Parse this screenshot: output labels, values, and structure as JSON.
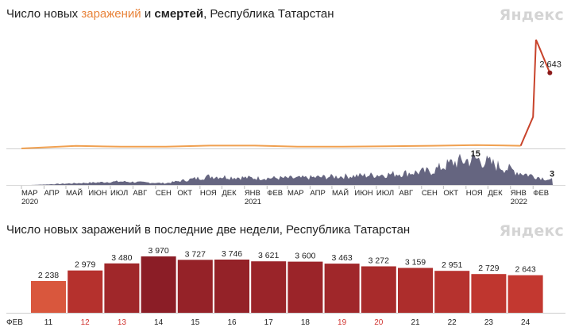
{
  "brand": "Яндекс",
  "chart1": {
    "title_part1": "Число новых ",
    "title_infections": "заражений",
    "title_part2": " и ",
    "title_deaths": "смертей",
    "title_part3": ", Республика Татарстан",
    "infections_last_label": "2 643",
    "deaths_last_label": "3",
    "deaths_peak_label": "15",
    "month_labels": [
      "МАР",
      "АПР",
      "МАЙ",
      "ИЮН",
      "ИЮЛ",
      "АВГ",
      "СЕН",
      "ОКТ",
      "НОЯ",
      "ДЕК",
      "ЯНВ",
      "ФЕВ",
      "МАР",
      "АПР",
      "МАЙ",
      "ИЮН",
      "ИЮЛ",
      "АВГ",
      "СЕН",
      "ОКТ",
      "НОЯ",
      "ДЕК",
      "ЯНВ",
      "ФЕВ"
    ],
    "year_labels": [
      "2020",
      "2021",
      "2022"
    ],
    "colors": {
      "infections": "#f0a050",
      "deaths": "#4a4a6a",
      "deaths_marker": "#8b1a1a",
      "infections_recent": "#c8432b"
    }
  },
  "chart_data": [
    {
      "type": "line",
      "title": "Число новых заражений и смертей, Республика Татарстан",
      "series": [
        {
          "name": "заражений",
          "x": [
            "2020-03",
            "2020-05",
            "2020-07",
            "2020-09",
            "2020-11",
            "2021-01",
            "2021-03",
            "2021-05",
            "2021-07",
            "2021-09",
            "2021-11",
            "2022-01",
            "2022-02-01",
            "2022-02-05",
            "2022-02-10",
            "2022-02-24"
          ],
          "values": [
            0,
            90,
            60,
            60,
            100,
            100,
            60,
            60,
            75,
            95,
            120,
            95,
            1100,
            3800,
            3500,
            2643
          ]
        },
        {
          "name": "смертей",
          "x": [
            "2020-03",
            "2020-05",
            "2020-07",
            "2020-09",
            "2020-11",
            "2021-01",
            "2021-03",
            "2021-05",
            "2021-07",
            "2021-09",
            "2021-10",
            "2021-11",
            "2022-01",
            "2022-02-24"
          ],
          "values": [
            0,
            1,
            2,
            1,
            5,
            4,
            4,
            5,
            6,
            8,
            13,
            15,
            7,
            3
          ]
        }
      ]
    },
    {
      "type": "bar",
      "title": "Число новых заражений в последние две недели, Республика Татарстан",
      "xlabel": "ФЕВ",
      "categories": [
        "11",
        "12",
        "13",
        "14",
        "15",
        "16",
        "17",
        "18",
        "19",
        "20",
        "21",
        "22",
        "23",
        "24"
      ],
      "values": [
        2238,
        2979,
        3480,
        3970,
        3727,
        3746,
        3621,
        3600,
        3463,
        3272,
        3159,
        2951,
        2729,
        2643
      ],
      "value_labels": [
        "2 238",
        "2 979",
        "3 480",
        "3 970",
        "3 727",
        "3 746",
        "3 621",
        "3 600",
        "3 463",
        "3 272",
        "3 159",
        "2 951",
        "2 729",
        "2 643"
      ],
      "weekend_categories": [
        "12",
        "13",
        "19",
        "20"
      ],
      "ylim": [
        0,
        4200
      ]
    }
  ],
  "chart2": {
    "title": "Число новых заражений в последние две недели, Республика Татарстан",
    "month_label": "ФЕВ",
    "colors": {
      "tick_normal": "#222222",
      "tick_weekend": "#d0312d",
      "baseline": "#cccccc"
    }
  }
}
